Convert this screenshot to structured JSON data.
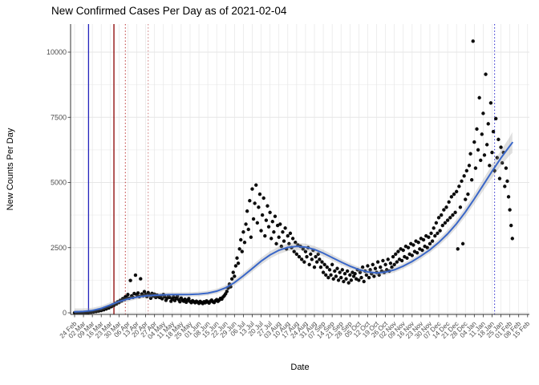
{
  "chart_data": {
    "type": "scatter",
    "title": "New Confirmed Cases Per Day as of 2021-02-04",
    "xlabel": "Date",
    "ylabel": "New Counts Per Day",
    "x_start_date": "2020-02-24",
    "x_tick_every_days": 7,
    "x_tick_labels": [
      "24 Feb",
      "02 Mar",
      "09 Mar",
      "16 Mar",
      "23 Mar",
      "30 Mar",
      "06 Apr",
      "13 Apr",
      "20 Apr",
      "27 Apr",
      "04 May",
      "11 May",
      "18 May",
      "25 May",
      "01 Jun",
      "08 Jun",
      "15 Jun",
      "22 Jun",
      "29 Jun",
      "06 Jul",
      "13 Jul",
      "20 Jul",
      "27 Jul",
      "03 Aug",
      "10 Aug",
      "17 Aug",
      "24 Aug",
      "31 Aug",
      "07 Sep",
      "14 Sep",
      "21 Sep",
      "28 Sep",
      "05 Oct",
      "12 Oct",
      "19 Oct",
      "26 Oct",
      "02 Nov",
      "09 Nov",
      "16 Nov",
      "23 Nov",
      "30 Nov",
      "07 Dec",
      "14 Dec",
      "21 Dec",
      "28 Dec",
      "04 Jan",
      "11 Jan",
      "18 Jan",
      "25 Jan",
      "01 Feb",
      "08 Feb",
      "15 Feb"
    ],
    "y_ticks": [
      0,
      2500,
      5000,
      7500,
      10000
    ],
    "ylim": [
      -60,
      11000
    ],
    "grid": true,
    "legend": "none",
    "colors": {
      "point": "#000000",
      "smooth_line": "#3a67c8",
      "ribbon": "#999999",
      "grid_major": "#e6e6e6",
      "grid_minor": "#f2f2f2",
      "axis": "#333333",
      "tick_label": "#4d4d4d"
    },
    "vlines": [
      {
        "day": 11,
        "color": "#2222bb",
        "style": "solid"
      },
      {
        "day": 31,
        "color": "#8b0000",
        "style": "solid"
      },
      {
        "day": 40,
        "color": "#bb3333",
        "style": "dotted"
      },
      {
        "day": 58,
        "color": "#cc7777",
        "style": "dotted"
      },
      {
        "day": 331,
        "color": "#2929cc",
        "style": "dotted"
      }
    ],
    "smooth": [
      [
        0,
        40,
        130
      ],
      [
        7,
        55,
        115
      ],
      [
        14,
        90,
        105
      ],
      [
        21,
        170,
        100
      ],
      [
        28,
        300,
        100
      ],
      [
        35,
        430,
        95
      ],
      [
        42,
        530,
        95
      ],
      [
        49,
        600,
        90
      ],
      [
        56,
        650,
        90
      ],
      [
        63,
        675,
        88
      ],
      [
        70,
        690,
        86
      ],
      [
        77,
        700,
        85
      ],
      [
        84,
        700,
        85
      ],
      [
        91,
        705,
        85
      ],
      [
        98,
        720,
        85
      ],
      [
        105,
        755,
        88
      ],
      [
        112,
        830,
        92
      ],
      [
        119,
        960,
        98
      ],
      [
        126,
        1160,
        108
      ],
      [
        133,
        1420,
        118
      ],
      [
        140,
        1700,
        128
      ],
      [
        147,
        1980,
        135
      ],
      [
        154,
        2220,
        140
      ],
      [
        161,
        2400,
        142
      ],
      [
        168,
        2510,
        142
      ],
      [
        175,
        2550,
        140
      ],
      [
        182,
        2520,
        136
      ],
      [
        189,
        2430,
        130
      ],
      [
        196,
        2290,
        124
      ],
      [
        203,
        2120,
        118
      ],
      [
        210,
        1950,
        112
      ],
      [
        217,
        1790,
        108
      ],
      [
        224,
        1660,
        104
      ],
      [
        231,
        1570,
        100
      ],
      [
        238,
        1530,
        100
      ],
      [
        245,
        1560,
        100
      ],
      [
        252,
        1650,
        102
      ],
      [
        259,
        1790,
        106
      ],
      [
        266,
        1970,
        110
      ],
      [
        273,
        2180,
        115
      ],
      [
        280,
        2420,
        122
      ],
      [
        287,
        2700,
        132
      ],
      [
        294,
        3030,
        144
      ],
      [
        301,
        3420,
        158
      ],
      [
        308,
        3870,
        175
      ],
      [
        315,
        4370,
        196
      ],
      [
        322,
        4900,
        220
      ],
      [
        329,
        5430,
        250
      ],
      [
        336,
        5940,
        290
      ],
      [
        343,
        6400,
        350
      ],
      [
        345,
        6530,
        400
      ]
    ],
    "points": [
      [
        0,
        3
      ],
      [
        1,
        1
      ],
      [
        2,
        5
      ],
      [
        3,
        2
      ],
      [
        4,
        7
      ],
      [
        5,
        4
      ],
      [
        6,
        9
      ],
      [
        7,
        6
      ],
      [
        8,
        14
      ],
      [
        9,
        10
      ],
      [
        10,
        22
      ],
      [
        11,
        18
      ],
      [
        12,
        30
      ],
      [
        13,
        26
      ],
      [
        14,
        42
      ],
      [
        15,
        38
      ],
      [
        16,
        58
      ],
      [
        17,
        50
      ],
      [
        18,
        78
      ],
      [
        19,
        70
      ],
      [
        20,
        100
      ],
      [
        21,
        92
      ],
      [
        22,
        130
      ],
      [
        23,
        118
      ],
      [
        24,
        165
      ],
      [
        25,
        150
      ],
      [
        26,
        205
      ],
      [
        27,
        188
      ],
      [
        28,
        250
      ],
      [
        29,
        235
      ],
      [
        30,
        305
      ],
      [
        31,
        290
      ],
      [
        32,
        360
      ],
      [
        33,
        340
      ],
      [
        34,
        420
      ],
      [
        35,
        395
      ],
      [
        36,
        480
      ],
      [
        37,
        455
      ],
      [
        38,
        545
      ],
      [
        39,
        510
      ],
      [
        40,
        615
      ],
      [
        41,
        585
      ],
      [
        42,
        700
      ],
      [
        43,
        560
      ],
      [
        44,
        1240
      ],
      [
        45,
        650
      ],
      [
        46,
        590
      ],
      [
        47,
        740
      ],
      [
        48,
        1445
      ],
      [
        49,
        690
      ],
      [
        50,
        760
      ],
      [
        51,
        620
      ],
      [
        52,
        1305
      ],
      [
        53,
        720
      ],
      [
        54,
        655
      ],
      [
        55,
        815
      ],
      [
        56,
        700
      ],
      [
        57,
        620
      ],
      [
        58,
        770
      ],
      [
        59,
        685
      ],
      [
        60,
        560
      ],
      [
        61,
        745
      ],
      [
        62,
        640
      ],
      [
        63,
        715
      ],
      [
        64,
        590
      ],
      [
        65,
        680
      ],
      [
        66,
        625
      ],
      [
        67,
        585
      ],
      [
        68,
        655
      ],
      [
        69,
        540
      ],
      [
        70,
        700
      ],
      [
        71,
        615
      ],
      [
        72,
        480
      ],
      [
        73,
        565
      ],
      [
        74,
        660
      ],
      [
        75,
        590
      ],
      [
        76,
        445
      ],
      [
        77,
        525
      ],
      [
        78,
        610
      ],
      [
        79,
        470
      ],
      [
        80,
        555
      ],
      [
        81,
        635
      ],
      [
        82,
        505
      ],
      [
        83,
        425
      ],
      [
        84,
        565
      ],
      [
        85,
        485
      ],
      [
        86,
        445
      ],
      [
        87,
        520
      ],
      [
        88,
        405
      ],
      [
        89,
        475
      ],
      [
        90,
        545
      ],
      [
        91,
        435
      ],
      [
        92,
        390
      ],
      [
        93,
        465
      ],
      [
        94,
        425
      ],
      [
        95,
        385
      ],
      [
        96,
        445
      ],
      [
        97,
        410
      ],
      [
        98,
        365
      ],
      [
        99,
        435
      ],
      [
        100,
        395
      ],
      [
        101,
        355
      ],
      [
        102,
        425
      ],
      [
        103,
        385
      ],
      [
        104,
        455
      ],
      [
        105,
        415
      ],
      [
        106,
        375
      ],
      [
        107,
        445
      ],
      [
        108,
        485
      ],
      [
        109,
        420
      ],
      [
        110,
        395
      ],
      [
        111,
        465
      ],
      [
        112,
        505
      ],
      [
        113,
        440
      ],
      [
        114,
        490
      ],
      [
        115,
        555
      ],
      [
        116,
        525
      ],
      [
        117,
        605
      ],
      [
        118,
        660
      ],
      [
        119,
        730
      ],
      [
        120,
        820
      ],
      [
        121,
        950
      ],
      [
        122,
        1100
      ],
      [
        123,
        1000
      ],
      [
        124,
        1300
      ],
      [
        125,
        1550
      ],
      [
        126,
        1400
      ],
      [
        127,
        1800
      ],
      [
        128,
        2100
      ],
      [
        129,
        1900
      ],
      [
        130,
        2450
      ],
      [
        131,
        2800
      ],
      [
        132,
        2350
      ],
      [
        133,
        3100
      ],
      [
        134,
        2700
      ],
      [
        135,
        3400
      ],
      [
        136,
        3900
      ],
      [
        137,
        3200
      ],
      [
        138,
        4300
      ],
      [
        139,
        2900
      ],
      [
        140,
        4750
      ],
      [
        141,
        3600
      ],
      [
        142,
        4200
      ],
      [
        143,
        4900
      ],
      [
        144,
        3450
      ],
      [
        145,
        4050
      ],
      [
        146,
        4550
      ],
      [
        147,
        3150
      ],
      [
        148,
        3750
      ],
      [
        149,
        4400
      ],
      [
        150,
        2950
      ],
      [
        151,
        3550
      ],
      [
        152,
        4100
      ],
      [
        153,
        3300
      ],
      [
        154,
        3850
      ],
      [
        155,
        2850
      ],
      [
        156,
        3500
      ],
      [
        157,
        3100
      ],
      [
        158,
        3700
      ],
      [
        159,
        2650
      ],
      [
        160,
        3350
      ],
      [
        161,
        2900
      ],
      [
        162,
        3400
      ],
      [
        163,
        2550
      ],
      [
        164,
        3100
      ],
      [
        165,
        2750
      ],
      [
        166,
        3250
      ],
      [
        167,
        2450
      ],
      [
        168,
        2950
      ],
      [
        169,
        2650
      ],
      [
        170,
        3050
      ],
      [
        171,
        2500
      ],
      [
        172,
        2850
      ],
      [
        173,
        2350
      ],
      [
        174,
        2700
      ],
      [
        175,
        2250
      ],
      [
        176,
        2600
      ],
      [
        177,
        2150
      ],
      [
        178,
        2550
      ],
      [
        179,
        2050
      ],
      [
        180,
        2450
      ],
      [
        181,
        1950
      ],
      [
        182,
        2350
      ],
      [
        183,
        2150
      ],
      [
        184,
        2500
      ],
      [
        185,
        1850
      ],
      [
        186,
        2250
      ],
      [
        187,
        2050
      ],
      [
        188,
        2400
      ],
      [
        189,
        1750
      ],
      [
        190,
        2150
      ],
      [
        191,
        1950
      ],
      [
        192,
        2250
      ],
      [
        193,
        2050
      ],
      [
        194,
        1750
      ],
      [
        195,
        1950
      ],
      [
        196,
        1550
      ],
      [
        197,
        1850
      ],
      [
        198,
        1450
      ],
      [
        199,
        1750
      ],
      [
        200,
        1350
      ],
      [
        201,
        1650
      ],
      [
        202,
        1450
      ],
      [
        203,
        1850
      ],
      [
        204,
        1300
      ],
      [
        205,
        1600
      ],
      [
        206,
        1400
      ],
      [
        207,
        1700
      ],
      [
        208,
        1250
      ],
      [
        209,
        1550
      ],
      [
        210,
        1350
      ],
      [
        211,
        1650
      ],
      [
        212,
        1200
      ],
      [
        213,
        1500
      ],
      [
        214,
        1300
      ],
      [
        215,
        1600
      ],
      [
        216,
        1150
      ],
      [
        217,
        1450
      ],
      [
        218,
        1250
      ],
      [
        219,
        1550
      ],
      [
        220,
        1400
      ],
      [
        221,
        1500
      ],
      [
        222,
        1300
      ],
      [
        223,
        1650
      ],
      [
        224,
        1250
      ],
      [
        225,
        1550
      ],
      [
        226,
        1350
      ],
      [
        227,
        1750
      ],
      [
        228,
        1200
      ],
      [
        229,
        1600
      ],
      [
        230,
        1450
      ],
      [
        231,
        1800
      ],
      [
        232,
        1350
      ],
      [
        233,
        1650
      ],
      [
        234,
        1500
      ],
      [
        235,
        1850
      ],
      [
        236,
        1400
      ],
      [
        237,
        1700
      ],
      [
        238,
        1550
      ],
      [
        239,
        1950
      ],
      [
        240,
        1450
      ],
      [
        241,
        1750
      ],
      [
        242,
        1600
      ],
      [
        243,
        2000
      ],
      [
        244,
        1550
      ],
      [
        245,
        1850
      ],
      [
        246,
        1650
      ],
      [
        247,
        2050
      ],
      [
        248,
        1600
      ],
      [
        249,
        1900
      ],
      [
        250,
        1750
      ],
      [
        251,
        2150
      ],
      [
        252,
        1850
      ],
      [
        253,
        2250
      ],
      [
        254,
        1950
      ],
      [
        255,
        2350
      ],
      [
        256,
        2050
      ],
      [
        257,
        2450
      ],
      [
        258,
        2000
      ],
      [
        259,
        2400
      ],
      [
        260,
        2150
      ],
      [
        261,
        2550
      ],
      [
        262,
        2100
      ],
      [
        263,
        2500
      ],
      [
        264,
        2250
      ],
      [
        265,
        2650
      ],
      [
        266,
        2200
      ],
      [
        267,
        2600
      ],
      [
        268,
        2350
      ],
      [
        269,
        2750
      ],
      [
        270,
        2300
      ],
      [
        271,
        2700
      ],
      [
        272,
        2450
      ],
      [
        273,
        2850
      ],
      [
        274,
        2400
      ],
      [
        275,
        2800
      ],
      [
        276,
        2550
      ],
      [
        277,
        2950
      ],
      [
        278,
        2500
      ],
      [
        279,
        2900
      ],
      [
        280,
        2650
      ],
      [
        281,
        3050
      ],
      [
        282,
        2750
      ],
      [
        283,
        3250
      ],
      [
        284,
        2950
      ],
      [
        285,
        3450
      ],
      [
        286,
        3050
      ],
      [
        287,
        3650
      ],
      [
        288,
        3150
      ],
      [
        289,
        3750
      ],
      [
        290,
        3350
      ],
      [
        291,
        3950
      ],
      [
        292,
        3450
      ],
      [
        293,
        4050
      ],
      [
        294,
        3550
      ],
      [
        295,
        4250
      ],
      [
        296,
        3650
      ],
      [
        297,
        4450
      ],
      [
        298,
        3750
      ],
      [
        299,
        4550
      ],
      [
        300,
        3850
      ],
      [
        301,
        4650
      ],
      [
        302,
        2450
      ],
      [
        303,
        4850
      ],
      [
        304,
        4050
      ],
      [
        305,
        5050
      ],
      [
        306,
        2650
      ],
      [
        307,
        5250
      ],
      [
        308,
        4350
      ],
      [
        309,
        5450
      ],
      [
        310,
        4550
      ],
      [
        311,
        5650
      ],
      [
        312,
        6100
      ],
      [
        313,
        5100
      ],
      [
        314,
        10420
      ],
      [
        315,
        6550
      ],
      [
        316,
        5550
      ],
      [
        317,
        7050
      ],
      [
        318,
        6250
      ],
      [
        319,
        8250
      ],
      [
        320,
        5850
      ],
      [
        321,
        6850
      ],
      [
        322,
        7650
      ],
      [
        323,
        6050
      ],
      [
        324,
        9150
      ],
      [
        325,
        6450
      ],
      [
        326,
        7250
      ],
      [
        327,
        5650
      ],
      [
        328,
        8050
      ],
      [
        329,
        6150
      ],
      [
        330,
        6950
      ],
      [
        331,
        5450
      ],
      [
        332,
        7450
      ],
      [
        333,
        5950
      ],
      [
        334,
        6650
      ],
      [
        335,
        5150
      ],
      [
        336,
        6350
      ],
      [
        337,
        5750
      ],
      [
        338,
        6150
      ],
      [
        339,
        4850
      ],
      [
        340,
        5550
      ],
      [
        341,
        5050
      ],
      [
        342,
        4450
      ],
      [
        343,
        3950
      ],
      [
        344,
        3350
      ],
      [
        345,
        2850
      ]
    ]
  }
}
